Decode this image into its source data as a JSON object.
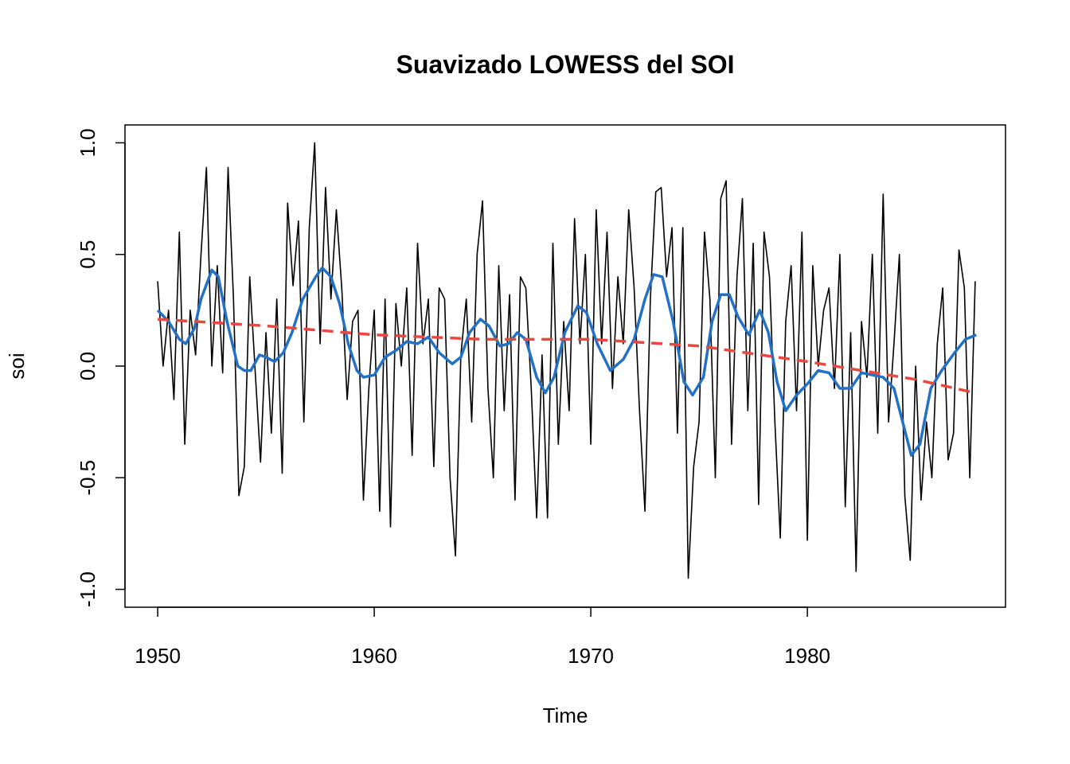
{
  "chart_data": {
    "type": "line",
    "title": "Suavizado LOWESS del SOI",
    "x_label": "Time",
    "y_label": "soi",
    "xlim": [
      1948.49,
      1989.15
    ],
    "ylim": [
      -1.08,
      1.08
    ],
    "xticks": [
      1950,
      1960,
      1970,
      1980
    ],
    "yticks": [
      {
        "value": -1,
        "label": "-1.0"
      },
      -0.5,
      {
        "value": 0,
        "label": "0.0"
      },
      0.5,
      {
        "value": 1,
        "label": "1.0"
      }
    ],
    "series": [
      {
        "color": "#000000",
        "width": 1.6,
        "dash": false,
        "x": [
          1950,
          1950.25,
          1950.5,
          1950.75,
          1951,
          1951.25,
          1951.5,
          1951.75,
          1952,
          1952.25,
          1952.5,
          1952.75,
          1953,
          1953.25,
          1953.5,
          1953.75,
          1954,
          1954.25,
          1954.5,
          1954.75,
          1955,
          1955.25,
          1955.5,
          1955.75,
          1956,
          1956.25,
          1956.5,
          1956.75,
          1957,
          1957.25,
          1957.5,
          1957.75,
          1958,
          1958.25,
          1958.5,
          1958.75,
          1959,
          1959.25,
          1959.5,
          1959.75,
          1960,
          1960.25,
          1960.5,
          1960.75,
          1961,
          1961.25,
          1961.5,
          1961.75,
          1962,
          1962.25,
          1962.5,
          1962.75,
          1963,
          1963.25,
          1963.5,
          1963.75,
          1964,
          1964.25,
          1964.5,
          1964.75,
          1965,
          1965.25,
          1965.5,
          1965.75,
          1966,
          1966.25,
          1966.5,
          1966.75,
          1967,
          1967.25,
          1967.5,
          1967.75,
          1968,
          1968.25,
          1968.5,
          1968.75,
          1969,
          1969.25,
          1969.5,
          1969.75,
          1970,
          1970.25,
          1970.5,
          1970.75,
          1971,
          1971.25,
          1971.5,
          1971.75,
          1972,
          1972.25,
          1972.5,
          1972.75,
          1973,
          1973.25,
          1973.5,
          1973.75,
          1974,
          1974.25,
          1974.5,
          1974.75,
          1975,
          1975.25,
          1975.5,
          1975.75,
          1976,
          1976.25,
          1976.5,
          1976.75,
          1977,
          1977.25,
          1977.5,
          1977.75,
          1978,
          1978.25,
          1978.5,
          1978.75,
          1979,
          1979.25,
          1979.5,
          1979.75,
          1980,
          1980.25,
          1980.5,
          1980.75,
          1981,
          1981.25,
          1981.5,
          1981.75,
          1982,
          1982.25,
          1982.5,
          1982.75,
          1983,
          1983.25,
          1983.5,
          1983.75,
          1984,
          1984.25,
          1984.5,
          1984.75,
          1985,
          1985.25,
          1985.5,
          1985.75,
          1986,
          1986.25,
          1986.5,
          1986.75,
          1987,
          1987.25,
          1987.5,
          1987.75
        ],
        "values": [
          0.38,
          0.0,
          0.25,
          -0.15,
          0.6,
          -0.35,
          0.25,
          0.05,
          0.5,
          0.89,
          0.0,
          0.45,
          -0.03,
          0.89,
          0.3,
          -0.58,
          -0.45,
          0.4,
          -0.02,
          -0.43,
          0.15,
          -0.3,
          0.3,
          -0.48,
          0.73,
          0.36,
          0.65,
          -0.25,
          0.62,
          1.0,
          0.1,
          0.8,
          0.3,
          0.7,
          0.35,
          -0.15,
          0.2,
          0.25,
          -0.6,
          -0.1,
          0.25,
          -0.65,
          0.3,
          -0.72,
          0.28,
          0.0,
          0.35,
          -0.4,
          0.55,
          0.1,
          0.3,
          -0.45,
          0.35,
          0.3,
          -0.5,
          -0.85,
          0.05,
          0.3,
          -0.25,
          0.5,
          0.74,
          -0.1,
          -0.5,
          0.45,
          -0.2,
          0.32,
          -0.6,
          0.4,
          0.35,
          -0.1,
          -0.68,
          0.05,
          -0.68,
          0.55,
          -0.35,
          0.2,
          -0.2,
          0.66,
          0.1,
          0.5,
          -0.35,
          0.7,
          0.1,
          0.6,
          -0.1,
          0.4,
          0.1,
          0.7,
          0.35,
          -0.2,
          -0.65,
          0.3,
          0.78,
          0.8,
          0.4,
          0.62,
          -0.3,
          0.62,
          -0.95,
          -0.45,
          -0.25,
          0.6,
          0.3,
          -0.5,
          0.75,
          0.83,
          -0.35,
          0.4,
          0.75,
          -0.2,
          0.55,
          -0.62,
          0.6,
          0.4,
          -0.25,
          -0.77,
          0.2,
          0.45,
          -0.2,
          0.6,
          -0.78,
          0.45,
          0.0,
          0.25,
          0.35,
          -0.1,
          0.5,
          -0.63,
          0.15,
          -0.92,
          0.2,
          -0.05,
          0.5,
          -0.3,
          0.77,
          -0.25,
          0.1,
          0.5,
          -0.58,
          -0.87,
          0.0,
          -0.6,
          -0.25,
          -0.5,
          0.1,
          0.35,
          -0.42,
          -0.3,
          0.52,
          0.35,
          -0.5,
          0.38
        ]
      },
      {
        "color": "#2271c5",
        "width": 3.5,
        "dash": false,
        "x": [
          1950,
          1950.5,
          1951,
          1951.3,
          1951.7,
          1952,
          1952.5,
          1952.8,
          1953.2,
          1953.7,
          1954,
          1954.3,
          1954.7,
          1955,
          1955.4,
          1955.8,
          1956.2,
          1956.7,
          1957,
          1957.3,
          1957.6,
          1958,
          1958.4,
          1958.8,
          1959.2,
          1959.5,
          1960,
          1960.5,
          1961,
          1961.5,
          1962,
          1962.5,
          1963,
          1963.6,
          1964,
          1964.4,
          1964.9,
          1965.3,
          1965.8,
          1966.2,
          1966.6,
          1967,
          1967.5,
          1967.9,
          1968.3,
          1968.8,
          1969.4,
          1969.8,
          1970.3,
          1970.9,
          1971.5,
          1972,
          1972.5,
          1972.9,
          1973.3,
          1973.8,
          1974.3,
          1974.7,
          1975.2,
          1975.6,
          1976,
          1976.4,
          1976.8,
          1977.3,
          1977.8,
          1978.2,
          1978.6,
          1979,
          1979.5,
          1980,
          1980.5,
          1981,
          1981.5,
          1982,
          1982.5,
          1983,
          1983.5,
          1984,
          1984.4,
          1984.8,
          1985.2,
          1985.7,
          1986.2,
          1986.8,
          1987.3,
          1987.8
        ],
        "values": [
          0.25,
          0.2,
          0.12,
          0.1,
          0.17,
          0.3,
          0.43,
          0.4,
          0.2,
          0.0,
          -0.02,
          -0.02,
          0.05,
          0.04,
          0.02,
          0.06,
          0.15,
          0.3,
          0.35,
          0.4,
          0.44,
          0.4,
          0.28,
          0.1,
          -0.02,
          -0.05,
          -0.04,
          0.04,
          0.07,
          0.11,
          0.1,
          0.13,
          0.06,
          0.01,
          0.04,
          0.15,
          0.21,
          0.18,
          0.09,
          0.1,
          0.15,
          0.12,
          -0.05,
          -0.12,
          -0.05,
          0.15,
          0.27,
          0.24,
          0.1,
          -0.02,
          0.03,
          0.12,
          0.3,
          0.41,
          0.4,
          0.2,
          -0.07,
          -0.13,
          -0.05,
          0.2,
          0.32,
          0.32,
          0.22,
          0.14,
          0.25,
          0.15,
          -0.07,
          -0.2,
          -0.13,
          -0.08,
          -0.02,
          -0.03,
          -0.1,
          -0.1,
          -0.03,
          -0.04,
          -0.05,
          -0.1,
          -0.25,
          -0.4,
          -0.35,
          -0.1,
          -0.02,
          0.06,
          0.12,
          0.14
        ]
      },
      {
        "color": "#e8483f",
        "width": 3.5,
        "dash": true,
        "x": [
          1950,
          1955,
          1960,
          1965,
          1970,
          1975,
          1980,
          1985,
          1987.75
        ],
        "values": [
          0.21,
          0.18,
          0.14,
          0.12,
          0.12,
          0.09,
          0.02,
          -0.06,
          -0.12
        ]
      }
    ]
  }
}
